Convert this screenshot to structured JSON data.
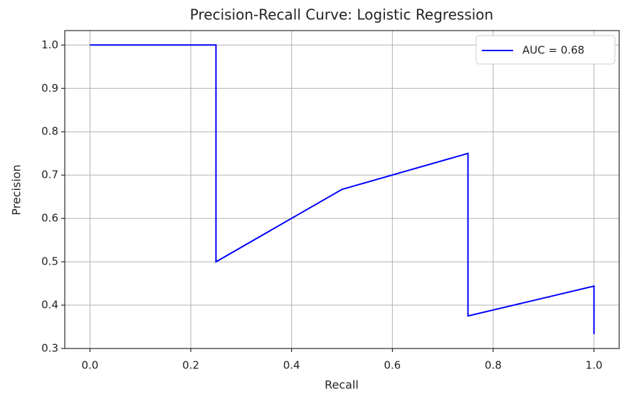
{
  "chart_data": {
    "type": "line",
    "title": "Precision-Recall Curve: Logistic Regression",
    "x_label": "Recall",
    "y_label": "Precision",
    "x": [
      0,
      0.25,
      0.25,
      0.5,
      0.75,
      0.75,
      1,
      1
    ],
    "series": [
      {
        "name": "AUC = 0.68",
        "color": "#0000ff",
        "values": [
          1,
          1,
          0.5,
          0.667,
          0.75,
          0.375,
          0.444,
          0.333
        ]
      }
    ],
    "xlim": [
      -0.05,
      1.05
    ],
    "xticks": [
      {
        "value": 0,
        "label": "0.0"
      },
      0.2,
      0.4,
      0.6,
      0.8,
      {
        "value": 1,
        "label": "1.0"
      }
    ],
    "ylim": [
      0.3,
      1.0333
    ],
    "yticks": [
      0.3,
      0.4,
      0.5,
      0.6,
      0.7,
      0.8,
      0.9,
      {
        "value": 1,
        "label": "1.0"
      }
    ],
    "grid": true,
    "legend": "upper right"
  }
}
